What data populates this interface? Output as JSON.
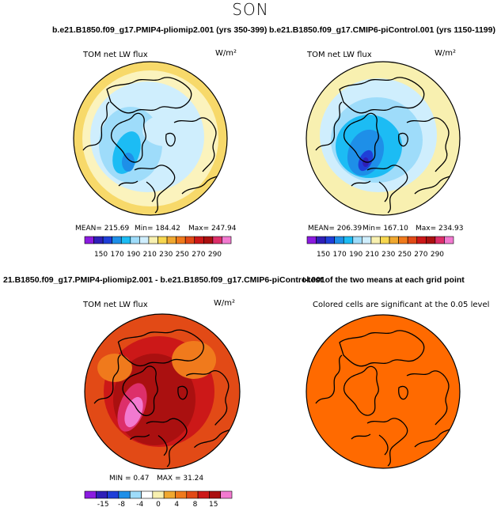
{
  "page": {
    "season": "SON",
    "panel1_title": "b.e21.B1850.f09_g17.PMIP4-pliomip2.001 (yrs 350-399)",
    "panel2_title": "b.e21.B1850.f09_g17.CMIP6-piControl.001 (yrs 1150-1199)",
    "panel3_title": "21.B1850.f09_g17.PMIP4-pliomip2.001 - b.e21.B1850.f09_g17.CMIP6-piControl.001",
    "panel4_title": "t-test of the two means at each grid point"
  },
  "chart_data": [
    {
      "type": "heatmap",
      "projection": "north-polar-stereographic",
      "label": "TOM net LW flux",
      "units": "W/m²",
      "stats": {
        "mean_label": "MEAN=",
        "mean": "215.69",
        "min_label": "Min=",
        "min": "184.42",
        "max_label": "Max=",
        "max": "247.94"
      },
      "colorbar_ticks": [
        "150",
        "170",
        "190",
        "210",
        "230",
        "250",
        "270",
        "290"
      ],
      "colorbar_colors": [
        "#8b1be0",
        "#2f1fb8",
        "#1f3fd8",
        "#1e8fe8",
        "#1cbcf4",
        "#9edcfa",
        "#cfeefd",
        "#f8f0b0",
        "#f7d750",
        "#f0a830",
        "#f07a1c",
        "#e24a16",
        "#cc1818",
        "#aa1010",
        "#dd2f6a",
        "#f27ad0"
      ]
    },
    {
      "type": "heatmap",
      "projection": "north-polar-stereographic",
      "label": "TOM net LW flux",
      "units": "W/m²",
      "stats": {
        "mean_label": "MEAN=",
        "mean": "206.39",
        "min_label": "Min=",
        "min": "167.10",
        "max_label": "Max=",
        "max": "234.93"
      },
      "colorbar_ticks": [
        "150",
        "170",
        "190",
        "210",
        "230",
        "250",
        "270",
        "290"
      ],
      "colorbar_colors": [
        "#8b1be0",
        "#2f1fb8",
        "#1f3fd8",
        "#1e8fe8",
        "#1cbcf4",
        "#9edcfa",
        "#cfeefd",
        "#f8f0b0",
        "#f7d750",
        "#f0a830",
        "#f07a1c",
        "#e24a16",
        "#cc1818",
        "#aa1010",
        "#dd2f6a",
        "#f27ad0"
      ]
    },
    {
      "type": "heatmap",
      "projection": "north-polar-stereographic",
      "label": "TOM net LW flux",
      "units": "W/m²",
      "stats": {
        "min_label": "MIN =",
        "min": "0.47",
        "max_label": "MAX =",
        "max": "31.24"
      },
      "colorbar_ticks": [
        "-15",
        "-8",
        "-4",
        "0",
        "4",
        "8",
        "15"
      ],
      "colorbar_colors": [
        "#8b1be0",
        "#2f1fb8",
        "#1f3fd8",
        "#1e8fe8",
        "#9edcfa",
        "#ffffff",
        "#f8f0b0",
        "#f0a830",
        "#f07a1c",
        "#e24a16",
        "#cc1818",
        "#aa1010",
        "#f27ad0"
      ]
    },
    {
      "type": "heatmap",
      "projection": "north-polar-stereographic",
      "label": "Colored cells are significant at the 0.05 level",
      "significance_level": 0.05,
      "fill_color": "#ff6a00"
    }
  ]
}
